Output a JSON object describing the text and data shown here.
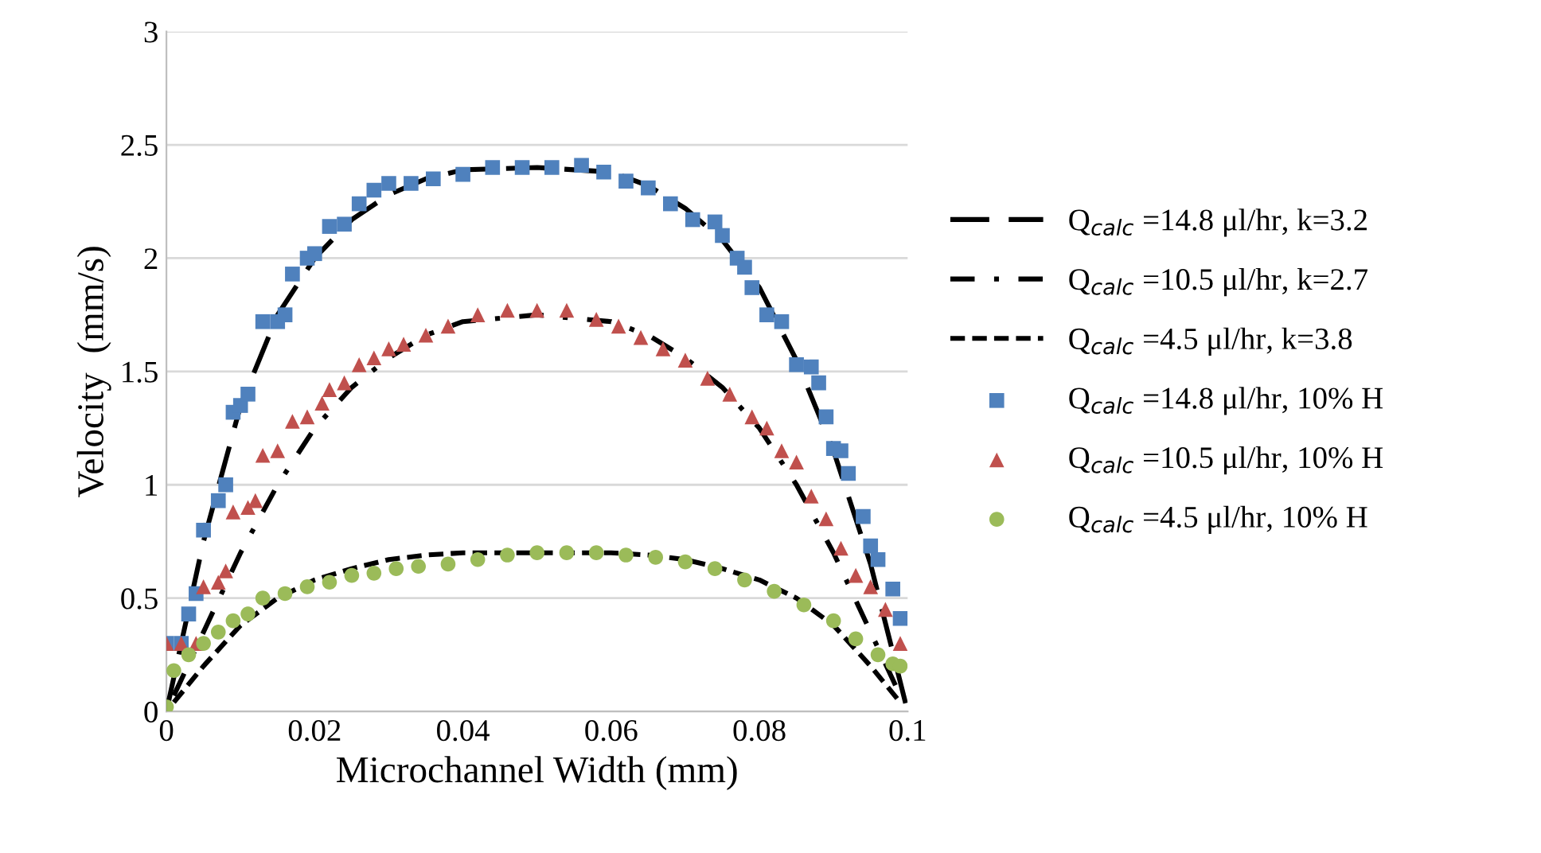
{
  "chart_data": {
    "type": "line",
    "xlabel": "Microchannel Width (mm)",
    "ylabel": "Velocity  (mm/s)",
    "xlim": [
      0,
      0.1
    ],
    "xticks": [
      {
        "value": 0,
        "label": "0"
      },
      0.02,
      0.04,
      0.06,
      0.08,
      0.1
    ],
    "ylim": [
      0,
      3
    ],
    "yticks": [
      {
        "value": 0,
        "label": "0"
      },
      0.5,
      {
        "value": 1,
        "label": "1"
      },
      1.5,
      {
        "value": 2,
        "label": "2"
      },
      2.5,
      {
        "value": 3,
        "label": "3"
      }
    ],
    "grid": "y",
    "legend": "right",
    "series": [
      {
        "name": "Q$_{calc}$ =14.8 μl/hr, k=3.2",
        "type": "line",
        "line_style": "longdash",
        "marker": "none",
        "color": "#000000",
        "x": [
          0,
          0.005,
          0.01,
          0.015,
          0.02,
          0.025,
          0.03,
          0.035,
          0.04,
          0.05,
          0.06,
          0.065,
          0.07,
          0.075,
          0.08,
          0.085,
          0.09,
          0.095,
          0.1
        ],
        "values": [
          0,
          0.75,
          1.35,
          1.75,
          2.0,
          2.17,
          2.28,
          2.35,
          2.39,
          2.4,
          2.38,
          2.32,
          2.22,
          2.08,
          1.87,
          1.55,
          1.15,
          0.65,
          0
        ]
      },
      {
        "name": "Q$_{calc}$ =10.5 μl/hr, k=2.7",
        "type": "line",
        "line_style": "dashdot",
        "marker": "none",
        "color": "#000000",
        "x": [
          0.001,
          0.005,
          0.01,
          0.015,
          0.02,
          0.025,
          0.03,
          0.035,
          0.04,
          0.05,
          0.06,
          0.065,
          0.07,
          0.075,
          0.08,
          0.085,
          0.09,
          0.095,
          0.099
        ],
        "values": [
          0.07,
          0.35,
          0.7,
          1.0,
          1.25,
          1.43,
          1.56,
          1.66,
          1.72,
          1.75,
          1.72,
          1.66,
          1.56,
          1.43,
          1.25,
          1.0,
          0.7,
          0.35,
          0.07
        ]
      },
      {
        "name": "Q$_{calc}$ =4.5 μl/hr, k=3.8",
        "type": "line",
        "line_style": "dashed",
        "marker": "none",
        "color": "#000000",
        "x": [
          0.001,
          0.005,
          0.01,
          0.015,
          0.02,
          0.025,
          0.03,
          0.035,
          0.04,
          0.05,
          0.06,
          0.065,
          0.07,
          0.075,
          0.08,
          0.085,
          0.09,
          0.095,
          0.099
        ],
        "values": [
          0.04,
          0.2,
          0.38,
          0.5,
          0.58,
          0.63,
          0.67,
          0.69,
          0.7,
          0.7,
          0.7,
          0.69,
          0.67,
          0.63,
          0.58,
          0.5,
          0.38,
          0.2,
          0.04
        ]
      },
      {
        "name": "Q$_{calc}$ =14.8 μl/hr, 10% H",
        "type": "scatter",
        "marker": "square",
        "color": "#4f81bd",
        "x": [
          0,
          0.002,
          0.003,
          0.004,
          0.005,
          0.007,
          0.008,
          0.009,
          0.01,
          0.011,
          0.013,
          0.015,
          0.016,
          0.017,
          0.019,
          0.02,
          0.022,
          0.024,
          0.026,
          0.028,
          0.03,
          0.033,
          0.036,
          0.04,
          0.044,
          0.048,
          0.052,
          0.056,
          0.059,
          0.062,
          0.065,
          0.068,
          0.071,
          0.074,
          0.075,
          0.077,
          0.078,
          0.079,
          0.081,
          0.083,
          0.085,
          0.087,
          0.088,
          0.089,
          0.09,
          0.091,
          0.092,
          0.094,
          0.095,
          0.096,
          0.098,
          0.099
        ],
        "values": [
          0.3,
          0.3,
          0.43,
          0.52,
          0.8,
          0.93,
          1.0,
          1.32,
          1.35,
          1.4,
          1.72,
          1.72,
          1.75,
          1.93,
          2.0,
          2.02,
          2.14,
          2.15,
          2.24,
          2.3,
          2.33,
          2.33,
          2.35,
          2.37,
          2.4,
          2.4,
          2.4,
          2.41,
          2.38,
          2.34,
          2.31,
          2.24,
          2.17,
          2.16,
          2.1,
          2.0,
          1.96,
          1.87,
          1.75,
          1.72,
          1.53,
          1.52,
          1.45,
          1.3,
          1.16,
          1.15,
          1.05,
          0.86,
          0.73,
          0.67,
          0.54,
          0.41
        ]
      },
      {
        "name": "Q$_{calc}$ =10.5 μl/hr, 10% H",
        "type": "scatter",
        "marker": "triangle",
        "color": "#c0504d",
        "x": [
          0,
          0.002,
          0.004,
          0.005,
          0.007,
          0.008,
          0.009,
          0.011,
          0.012,
          0.013,
          0.015,
          0.017,
          0.019,
          0.021,
          0.022,
          0.024,
          0.026,
          0.028,
          0.03,
          0.032,
          0.035,
          0.038,
          0.042,
          0.046,
          0.05,
          0.054,
          0.058,
          0.061,
          0.064,
          0.067,
          0.07,
          0.073,
          0.076,
          0.079,
          0.081,
          0.083,
          0.085,
          0.087,
          0.089,
          0.091,
          0.093,
          0.095,
          0.097,
          0.099
        ],
        "values": [
          0.3,
          0.3,
          0.3,
          0.55,
          0.57,
          0.62,
          0.88,
          0.9,
          0.93,
          1.13,
          1.15,
          1.28,
          1.3,
          1.36,
          1.42,
          1.45,
          1.53,
          1.56,
          1.6,
          1.62,
          1.66,
          1.7,
          1.75,
          1.77,
          1.77,
          1.77,
          1.73,
          1.7,
          1.65,
          1.6,
          1.55,
          1.47,
          1.4,
          1.3,
          1.25,
          1.15,
          1.1,
          0.95,
          0.85,
          0.72,
          0.6,
          0.55,
          0.45,
          0.3
        ]
      },
      {
        "name": "Q$_{calc}$ =4.5 μl/hr, 10% H",
        "type": "scatter",
        "marker": "circle",
        "color": "#9bbb59",
        "x": [
          0,
          0.001,
          0.003,
          0.005,
          0.007,
          0.009,
          0.011,
          0.013,
          0.016,
          0.019,
          0.022,
          0.025,
          0.028,
          0.031,
          0.034,
          0.038,
          0.042,
          0.046,
          0.05,
          0.054,
          0.058,
          0.062,
          0.066,
          0.07,
          0.074,
          0.078,
          0.082,
          0.086,
          0.09,
          0.093,
          0.096,
          0.098,
          0.099
        ],
        "values": [
          0.02,
          0.18,
          0.25,
          0.3,
          0.35,
          0.4,
          0.43,
          0.5,
          0.52,
          0.55,
          0.57,
          0.6,
          0.61,
          0.63,
          0.64,
          0.65,
          0.67,
          0.69,
          0.7,
          0.7,
          0.7,
          0.69,
          0.68,
          0.66,
          0.63,
          0.58,
          0.53,
          0.47,
          0.4,
          0.32,
          0.25,
          0.21,
          0.2
        ]
      }
    ]
  }
}
